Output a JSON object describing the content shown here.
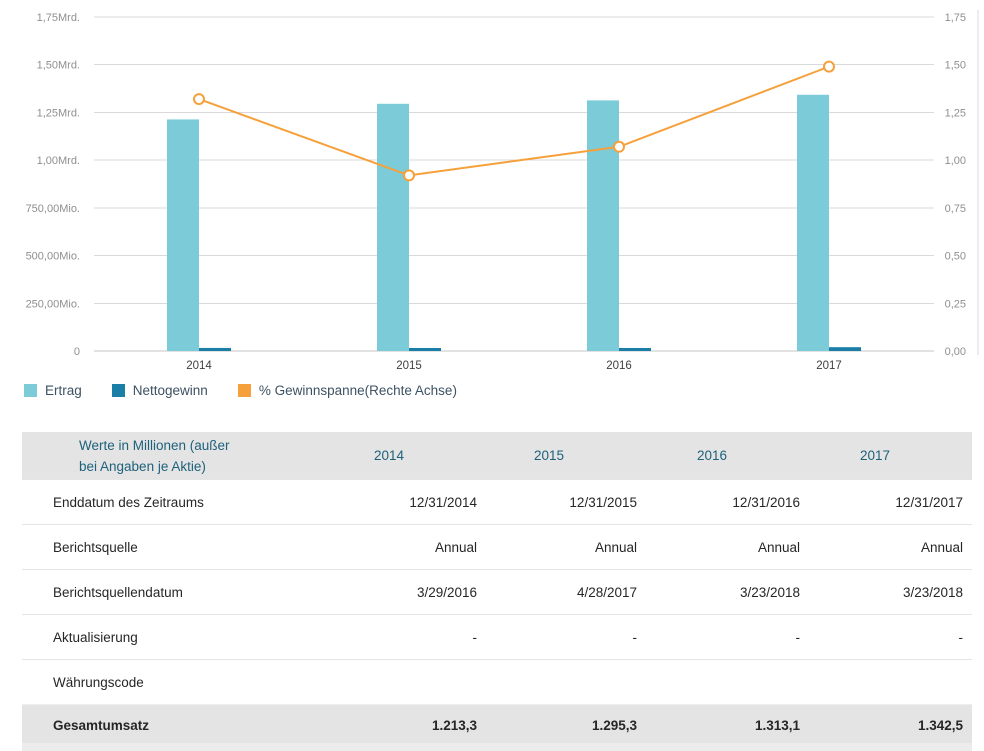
{
  "chart_data": {
    "type": "combo-bar-line",
    "categories": [
      "2014",
      "2015",
      "2016",
      "2017"
    ],
    "series": [
      {
        "name": "Ertrag",
        "type": "bar",
        "axis": "left",
        "color": "#7bcbd8",
        "values_mio": [
          1213.3,
          1295.3,
          1313.1,
          1342.5
        ]
      },
      {
        "name": "Nettogewinn",
        "type": "bar",
        "axis": "left",
        "color": "#1b7ea6",
        "values_mio": [
          16.0,
          11.9,
          14.1,
          20.0
        ]
      },
      {
        "name": "% Gewinnspanne(Rechte Achse)",
        "type": "line",
        "axis": "right",
        "color": "#f6a03b",
        "values_pct": [
          1.32,
          0.92,
          1.07,
          1.49
        ]
      }
    ],
    "left_axis": {
      "tick_labels": [
        "1,75Mrd.",
        "1,50Mrd.",
        "1,25Mrd.",
        "1,00Mrd.",
        "750,00Mio.",
        "500,00Mio.",
        "250,00Mio.",
        "0"
      ],
      "min_mio": 0,
      "max_mio": 1750
    },
    "right_axis": {
      "tick_labels": [
        "1,75",
        "1,50",
        "1,25",
        "1,00",
        "0,75",
        "0,50",
        "0,25",
        "0,00"
      ],
      "min": 0,
      "max": 1.75
    },
    "grid": true,
    "legend_position": "bottom-left",
    "title": ""
  },
  "legend": {
    "items": [
      {
        "label": "Ertrag",
        "color": "#7bcbd8"
      },
      {
        "label": "Nettogewinn",
        "color": "#1b7ea6"
      },
      {
        "label": "% Gewinnspanne(Rechte Achse)",
        "color": "#f6a03b"
      }
    ]
  },
  "table": {
    "header": {
      "label": "Werte in Millionen (außer bei Angaben je Aktie)",
      "years": [
        "2014",
        "2015",
        "2016",
        "2017"
      ]
    },
    "rows": [
      {
        "label": "Enddatum des Zeitraums",
        "values": [
          "12/31/2014",
          "12/31/2015",
          "12/31/2016",
          "12/31/2017"
        ],
        "emphasis": false
      },
      {
        "label": "Berichtsquelle",
        "values": [
          "Annual",
          "Annual",
          "Annual",
          "Annual"
        ],
        "emphasis": false
      },
      {
        "label": "Berichtsquellendatum",
        "values": [
          "3/29/2016",
          "4/28/2017",
          "3/23/2018",
          "3/23/2018"
        ],
        "emphasis": false
      },
      {
        "label": "Aktualisierung",
        "values": [
          "-",
          "-",
          "-",
          "-"
        ],
        "emphasis": false
      },
      {
        "label": "Währungscode",
        "values": [
          "",
          "",
          "",
          ""
        ],
        "emphasis": false
      },
      {
        "label": "Gesamtumsatz",
        "values": [
          "1.213,3",
          "1.295,3",
          "1.313,1",
          "1.342,5"
        ],
        "emphasis": true
      }
    ]
  },
  "colors": {
    "grid": "#d9d9d9",
    "baseline": "#c4c4c4",
    "axis_text": "#8f8f8f",
    "x_label_text": "#404040",
    "right_axis_line": "#d9d9d9"
  }
}
